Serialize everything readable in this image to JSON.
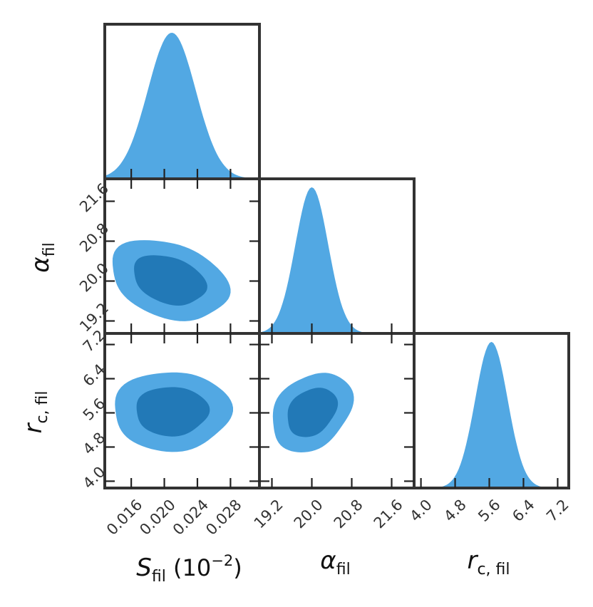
{
  "chart_data": {
    "type": "corner",
    "colors": {
      "outer": "#52a8e3",
      "inner": "#2279b7",
      "frame": "#333333"
    },
    "parameters": [
      {
        "id": "S_fil",
        "label_main": "S",
        "label_sub": "fil",
        "label_suffix": " (10",
        "label_exp": "−2",
        "label_close": ")",
        "range": [
          0.0128,
          0.0315
        ],
        "ticks": [
          0.016,
          0.02,
          0.024,
          0.028
        ],
        "tick_labels": [
          "0.016",
          "0.020",
          "0.024",
          "0.028"
        ],
        "mean": 0.0209,
        "sigma": 0.0029
      },
      {
        "id": "alpha_fil",
        "label_main": "α",
        "label_sub": "fil",
        "range": [
          18.95,
          22.05
        ],
        "ticks": [
          19.2,
          20.0,
          20.8,
          21.6
        ],
        "tick_labels": [
          "19.2",
          "20.0",
          "20.8",
          "21.6"
        ],
        "mean": 20.0,
        "sigma": 0.33
      },
      {
        "id": "r_c_fil",
        "label_main": "r",
        "label_sub": "c, fil",
        "range": [
          3.84,
          7.46
        ],
        "ticks": [
          4.0,
          4.8,
          5.6,
          6.4,
          7.2
        ],
        "tick_labels": [
          "4.0",
          "4.8",
          "5.6",
          "6.4",
          "7.2"
        ],
        "mean": 5.65,
        "sigma": 0.38
      }
    ],
    "contours": [
      {
        "x": "S_fil",
        "y": "alpha_fil",
        "x_center": 0.0206,
        "y_center": 20.02,
        "x_sigma": 0.0029,
        "y_sigma": 0.33,
        "rho": -0.3
      },
      {
        "x": "S_fil",
        "y": "r_c_fil",
        "x_center": 0.0209,
        "y_center": 5.64,
        "x_sigma": 0.0029,
        "y_sigma": 0.38,
        "rho": 0.0
      },
      {
        "x": "alpha_fil",
        "y": "r_c_fil",
        "x_center": 20.0,
        "y_center": 5.62,
        "x_sigma": 0.33,
        "y_sigma": 0.38,
        "rho": 0.28
      }
    ],
    "contour_levels": [
      "68%",
      "95%"
    ]
  }
}
